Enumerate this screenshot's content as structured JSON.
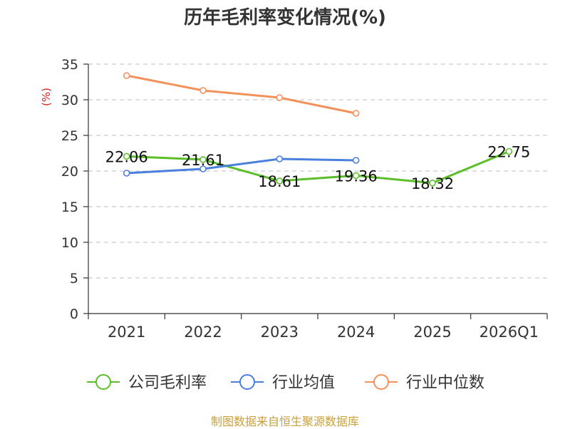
{
  "chart_data": {
    "type": "line",
    "title": "历年毛利率变化情况(%)",
    "ylabel": "(%)",
    "xlabel": "",
    "categories": [
      "2021",
      "2022",
      "2023",
      "2024",
      "2025",
      "2026Q1"
    ],
    "ylim": [
      0,
      35
    ],
    "yticks": [
      0,
      5,
      10,
      15,
      20,
      25,
      30,
      35
    ],
    "grid": true,
    "legend_position": "bottom",
    "series": [
      {
        "name": "公司毛利率",
        "color": "#5cbf2a",
        "values": [
          22.06,
          21.61,
          18.61,
          19.36,
          18.32,
          22.75
        ],
        "labels": [
          "22.06",
          "21.61",
          "18.61",
          "19.36",
          "18.32",
          "22.75"
        ]
      },
      {
        "name": "行业均值",
        "color": "#4a7fdc",
        "values": [
          19.7,
          20.3,
          21.7,
          21.5,
          null,
          null
        ]
      },
      {
        "name": "行业中位数",
        "color": "#f4905a",
        "values": [
          33.4,
          31.3,
          30.3,
          28.1,
          null,
          null
        ]
      }
    ],
    "source": "制图数据来自恒生聚源数据库"
  }
}
